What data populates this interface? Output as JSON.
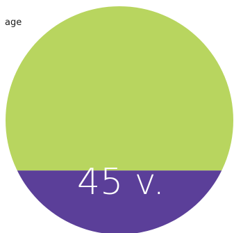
{
  "label": "age",
  "value_label": "45 v.",
  "colors": {
    "top": "#b8d55f",
    "bottom": "#5b3f99"
  },
  "chart_data": {
    "type": "pie",
    "title": "",
    "slices": [
      {
        "label": "",
        "fraction": 0.72,
        "color": "#b8d55f"
      },
      {
        "label": "45 v.",
        "fraction": 0.28,
        "color": "#5b3f99"
      }
    ]
  }
}
